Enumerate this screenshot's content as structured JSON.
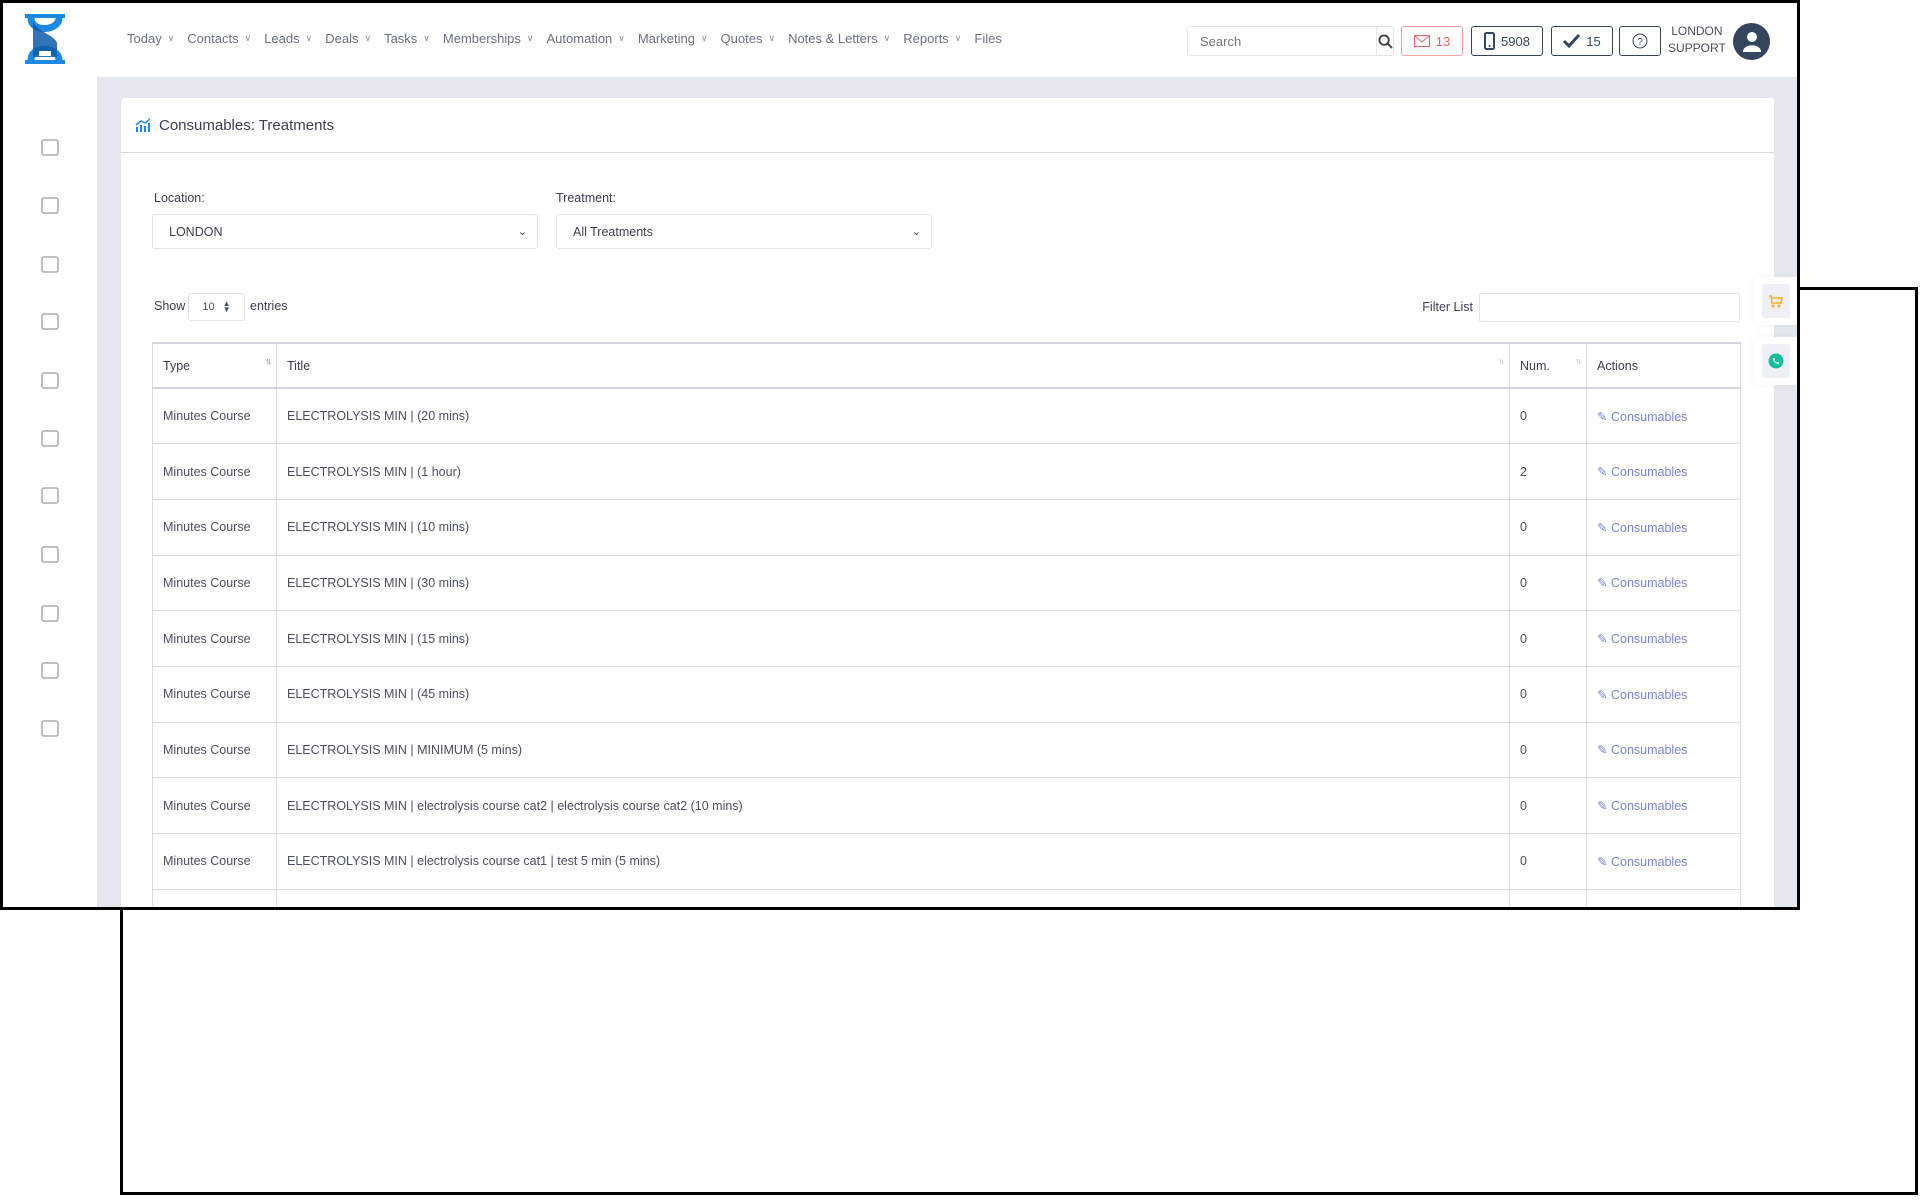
{
  "header": {
    "nav": [
      {
        "label": "Today",
        "dropdown": true
      },
      {
        "label": "Contacts",
        "dropdown": true
      },
      {
        "label": "Leads",
        "dropdown": true
      },
      {
        "label": "Deals",
        "dropdown": true
      },
      {
        "label": "Tasks",
        "dropdown": true
      },
      {
        "label": "Memberships",
        "dropdown": true
      },
      {
        "label": "Automation",
        "dropdown": true
      },
      {
        "label": "Marketing",
        "dropdown": true
      },
      {
        "label": "Quotes",
        "dropdown": true
      },
      {
        "label": "Notes & Letters",
        "dropdown": true
      },
      {
        "label": "Reports",
        "dropdown": true
      },
      {
        "label": "Files",
        "dropdown": false
      }
    ],
    "search_placeholder": "Search",
    "mail_count": "13",
    "phone_count": "5908",
    "tasks_count": "15",
    "user_line1": "LONDON",
    "user_line2": "SUPPORT"
  },
  "sidebar": {
    "icons": [
      "calendar-icon",
      "box-icon",
      "copy-icon",
      "basket-icon",
      "history-icon",
      "gift-icon",
      "cart-icon",
      "price-tag-icon",
      "report-icon",
      "user-refresh-icon",
      "lock-icon"
    ]
  },
  "page": {
    "title": "Consumables: Treatments",
    "location_label": "Location:",
    "location_value": "LONDON",
    "treatment_label": "Treatment:",
    "treatment_value": "All Treatments",
    "show_label": "Show",
    "entries_value": "10",
    "entries_label": "entries",
    "filter_label": "Filter List"
  },
  "table": {
    "columns": [
      "Type",
      "Title",
      "Num.",
      "Actions"
    ],
    "rows": [
      {
        "type": "Minutes Course",
        "title": "ELECTROLYSIS MIN | (20 mins)",
        "num": "0",
        "action": "Consumables"
      },
      {
        "type": "Minutes Course",
        "title": "ELECTROLYSIS MIN | (1 hour)",
        "num": "2",
        "action": "Consumables"
      },
      {
        "type": "Minutes Course",
        "title": "ELECTROLYSIS MIN | (10 mins)",
        "num": "0",
        "action": "Consumables"
      },
      {
        "type": "Minutes Course",
        "title": "ELECTROLYSIS MIN | (30 mins)",
        "num": "0",
        "action": "Consumables"
      },
      {
        "type": "Minutes Course",
        "title": "ELECTROLYSIS MIN | (15 mins)",
        "num": "0",
        "action": "Consumables"
      },
      {
        "type": "Minutes Course",
        "title": "ELECTROLYSIS MIN | (45 mins)",
        "num": "0",
        "action": "Consumables"
      },
      {
        "type": "Minutes Course",
        "title": "ELECTROLYSIS MIN | MINIMUM (5 mins)",
        "num": "0",
        "action": "Consumables"
      },
      {
        "type": "Minutes Course",
        "title": "ELECTROLYSIS MIN | electrolysis course cat2 | electrolysis course cat2 (10 mins)",
        "num": "0",
        "action": "Consumables"
      },
      {
        "type": "Minutes Course",
        "title": "ELECTROLYSIS MIN | electrolysis course cat1 | test 5 min (5 mins)",
        "num": "0",
        "action": "Consumables"
      }
    ]
  },
  "colors": {
    "brand": "#1e88e5",
    "dark": "#34465d",
    "link": "#7a86d8",
    "alert": "#e8646a",
    "background": "#e4e7f0",
    "cart": "#f5b21e",
    "whatsapp": "#1abc9c"
  }
}
